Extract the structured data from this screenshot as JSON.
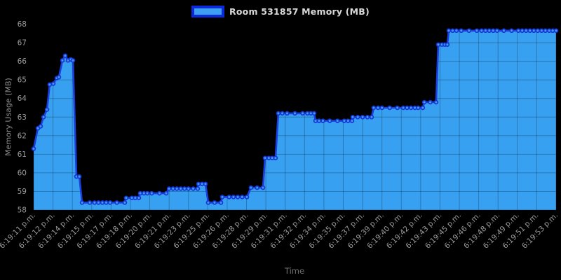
{
  "chart_data": {
    "type": "area",
    "legend": {
      "position": "top",
      "label": "Room 531857 Memory (MB)"
    },
    "x_axis": {
      "title": "Time",
      "tick_labels": [
        "6:19:11 p.m.",
        "6:19:12 p.m.",
        "6:19:14 p.m.",
        "6:19:15 p.m.",
        "6:19:17 p.m.",
        "6:19:18 p.m.",
        "6:19:20 p.m.",
        "6:19:21 p.m.",
        "6:19:23 p.m.",
        "6:19:25 p.m.",
        "6:19:26 p.m.",
        "6:19:28 p.m.",
        "6:19:29 p.m.",
        "6:19:31 p.m.",
        "6:19:32 p.m.",
        "6:19:34 p.m.",
        "6:19:35 p.m.",
        "6:19:37 p.m.",
        "6:19:39 p.m.",
        "6:19:40 p.m.",
        "6:19:42 p.m.",
        "6:19:43 p.m.",
        "6:19:45 p.m.",
        "6:19:46 p.m.",
        "6:19:48 p.m.",
        "6:19:49 p.m.",
        "6:19:51 p.m.",
        "6:19:53 p.m."
      ],
      "tick_times_s": [
        0,
        1,
        3,
        4,
        6,
        7,
        9,
        10,
        12,
        14,
        15,
        17,
        18,
        20,
        21,
        23,
        24,
        26,
        28,
        29,
        31,
        32,
        34,
        35,
        37,
        38,
        40,
        42
      ]
    },
    "y_axis": {
      "title": "Memory Usage (MB)",
      "ticks": [
        58,
        59,
        60,
        61,
        62,
        63,
        64,
        65,
        66,
        67,
        68
      ],
      "range": [
        58,
        68
      ]
    },
    "grid": true,
    "series": [
      {
        "name": "Room 531857 Memory (MB)",
        "t_unit": "seconds after 6:19:11 p.m.",
        "v_unit": "MB",
        "points": [
          [
            0,
            61.3
          ],
          [
            0.22,
            62.4
          ],
          [
            0.36,
            62.5
          ],
          [
            0.51,
            63
          ],
          [
            0.69,
            63.4
          ],
          [
            0.83,
            64.75
          ],
          [
            1.03,
            64.8
          ],
          [
            1.39,
            65.1
          ],
          [
            1.61,
            65.15
          ],
          [
            1.97,
            66.05
          ],
          [
            2.26,
            66.3
          ],
          [
            2.55,
            66.05
          ],
          [
            2.84,
            66.1
          ],
          [
            3.03,
            66.05
          ],
          [
            3.21,
            59.8
          ],
          [
            3.36,
            59.8
          ],
          [
            3.5,
            58.4
          ],
          [
            3.9,
            58.4
          ],
          [
            4.3,
            58.4
          ],
          [
            4.7,
            58.4
          ],
          [
            5.1,
            58.4
          ],
          [
            5.5,
            58.4
          ],
          [
            5.9,
            58.4
          ],
          [
            6.3,
            58.4
          ],
          [
            6.71,
            58.4
          ],
          [
            6.78,
            58.65
          ],
          [
            7.15,
            58.65
          ],
          [
            7.5,
            58.65
          ],
          [
            7.87,
            58.65
          ],
          [
            8.02,
            58.9
          ],
          [
            8.4,
            58.9
          ],
          [
            8.75,
            58.9
          ],
          [
            9.1,
            58.9
          ],
          [
            9.5,
            58.9
          ],
          [
            9.85,
            58.9
          ],
          [
            10,
            59.15
          ],
          [
            10.4,
            59.15
          ],
          [
            10.8,
            59.15
          ],
          [
            11.2,
            59.15
          ],
          [
            11.6,
            59.15
          ],
          [
            12,
            59.15
          ],
          [
            12.5,
            59.15
          ],
          [
            12.96,
            59.15
          ],
          [
            13.03,
            59.4
          ],
          [
            13.4,
            59.4
          ],
          [
            13.76,
            59.4
          ],
          [
            14.02,
            58.4
          ],
          [
            14.35,
            58.4
          ],
          [
            14.68,
            58.4
          ],
          [
            14.75,
            58.7
          ],
          [
            15.2,
            58.7
          ],
          [
            15.65,
            58.7
          ],
          [
            16.1,
            58.7
          ],
          [
            16.55,
            58.7
          ],
          [
            17.02,
            58.7
          ],
          [
            17.23,
            59.2
          ],
          [
            17.55,
            59.2
          ],
          [
            17.85,
            59.2
          ],
          [
            17.96,
            60.8
          ],
          [
            18.3,
            60.8
          ],
          [
            18.65,
            60.8
          ],
          [
            19,
            60.8
          ],
          [
            19.29,
            63.2
          ],
          [
            19.7,
            63.2
          ],
          [
            20.1,
            63.2
          ],
          [
            20.5,
            63.2
          ],
          [
            20.9,
            63.2
          ],
          [
            21.3,
            63.2
          ],
          [
            21.65,
            63.2
          ],
          [
            21.99,
            63.2
          ],
          [
            22.14,
            62.8
          ],
          [
            22.5,
            62.8
          ],
          [
            22.9,
            62.8
          ],
          [
            23.3,
            62.8
          ],
          [
            23.7,
            62.8
          ],
          [
            24.1,
            62.8
          ],
          [
            24.5,
            62.8
          ],
          [
            24.91,
            62.8
          ],
          [
            24.98,
            63
          ],
          [
            25.5,
            63
          ],
          [
            26,
            63
          ],
          [
            26.5,
            63
          ],
          [
            26.94,
            63
          ],
          [
            27.15,
            63.5
          ],
          [
            27.6,
            63.5
          ],
          [
            28,
            63.5
          ],
          [
            28.4,
            63.5
          ],
          [
            28.8,
            63.5
          ],
          [
            29.2,
            63.5
          ],
          [
            29.6,
            63.5
          ],
          [
            30,
            63.5
          ],
          [
            30.4,
            63.5
          ],
          [
            30.75,
            63.5
          ],
          [
            31.11,
            63.5
          ],
          [
            31.19,
            63.8
          ],
          [
            31.5,
            63.8
          ],
          [
            31.8,
            63.8
          ],
          [
            31.91,
            66.9
          ],
          [
            32.2,
            66.9
          ],
          [
            32.5,
            66.9
          ],
          [
            32.76,
            66.9
          ],
          [
            32.91,
            67.65
          ],
          [
            33.3,
            67.65
          ],
          [
            33.7,
            67.65
          ],
          [
            34.1,
            67.65
          ],
          [
            34.5,
            67.65
          ],
          [
            34.9,
            67.65
          ],
          [
            35.3,
            67.65
          ],
          [
            35.7,
            67.65
          ],
          [
            36.1,
            67.65
          ],
          [
            36.5,
            67.65
          ],
          [
            36.9,
            67.65
          ],
          [
            37.3,
            67.65
          ],
          [
            37.7,
            67.65
          ],
          [
            38.1,
            67.65
          ],
          [
            38.5,
            67.65
          ],
          [
            38.9,
            67.65
          ],
          [
            39.3,
            67.65
          ],
          [
            39.7,
            67.65
          ],
          [
            40.1,
            67.65
          ],
          [
            40.5,
            67.65
          ],
          [
            40.9,
            67.65
          ],
          [
            41.3,
            67.65
          ],
          [
            41.65,
            67.65
          ],
          [
            42,
            67.65
          ]
        ]
      }
    ],
    "colors": {
      "background": "#000000",
      "area_fill": "#38a0f0",
      "line": "#1b3fe0",
      "marker_stroke": "#1535d6",
      "marker_fill": "#3f9bef",
      "grid": "rgba(0,0,0,0.25)",
      "tick_label": "#9b9b9b",
      "y_axis_title": "#8f8f8f",
      "x_axis_title": "#6f6f6f",
      "legend_text": "#d9d9d9",
      "legend_swatch_border": "#0c2bd8",
      "legend_swatch_fill": "#3da0f2"
    }
  }
}
